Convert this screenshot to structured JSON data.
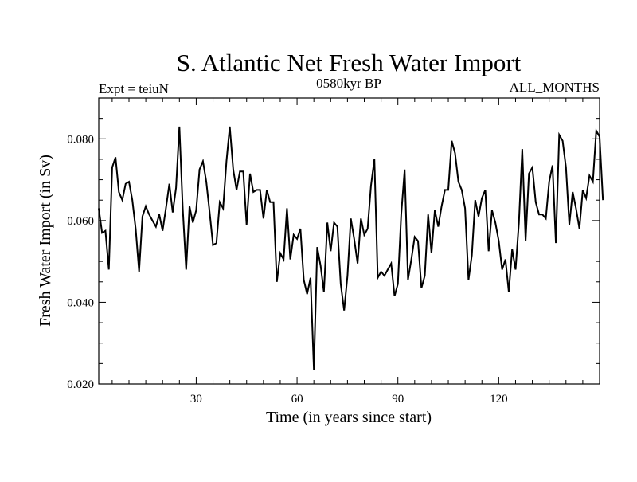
{
  "chart_data": {
    "type": "line",
    "title": "S. Atlantic Net Fresh Water Import",
    "subtitle_left": "Expt = teiuN",
    "subtitle_center": "0580kyr BP",
    "subtitle_right": "ALL_MONTHS",
    "xlabel": "Time (in years since start)",
    "ylabel": "Fresh Water Import (in Sv)",
    "xlim": [
      1,
      150
    ],
    "ylim": [
      0.02,
      0.09
    ],
    "x_major_ticks": [
      30,
      60,
      90,
      120
    ],
    "x_tick_labels": [
      "30",
      "60",
      "90",
      "120"
    ],
    "y_major_ticks": [
      0.02,
      0.04,
      0.06,
      0.08
    ],
    "y_tick_labels": [
      "0.020",
      "0.040",
      "0.060",
      "0.080"
    ],
    "grid": false,
    "series": [
      {
        "name": "Net Fresh Water Import",
        "color": "#000000",
        "x_start": 1,
        "x_step": 1,
        "values": [
          0.063,
          0.057,
          0.0575,
          0.048,
          0.073,
          0.0755,
          0.067,
          0.065,
          0.069,
          0.0695,
          0.065,
          0.058,
          0.0475,
          0.061,
          0.0635,
          0.0615,
          0.06,
          0.0585,
          0.0615,
          0.0575,
          0.063,
          0.069,
          0.062,
          0.068,
          0.083,
          0.063,
          0.048,
          0.0635,
          0.0595,
          0.0625,
          0.0725,
          0.0745,
          0.0695,
          0.062,
          0.054,
          0.0545,
          0.0645,
          0.063,
          0.0745,
          0.083,
          0.0725,
          0.0675,
          0.072,
          0.072,
          0.059,
          0.0715,
          0.067,
          0.0675,
          0.0675,
          0.0605,
          0.0675,
          0.0645,
          0.0645,
          0.045,
          0.052,
          0.0505,
          0.063,
          0.0505,
          0.0565,
          0.0555,
          0.058,
          0.0455,
          0.042,
          0.046,
          0.0235,
          0.0535,
          0.049,
          0.0425,
          0.0595,
          0.0525,
          0.0595,
          0.0585,
          0.0445,
          0.038,
          0.0465,
          0.0605,
          0.0555,
          0.0495,
          0.0605,
          0.0565,
          0.058,
          0.0685,
          0.075,
          0.046,
          0.0475,
          0.0465,
          0.048,
          0.0495,
          0.0415,
          0.0445,
          0.0615,
          0.0725,
          0.0455,
          0.0505,
          0.056,
          0.055,
          0.0435,
          0.0465,
          0.0615,
          0.052,
          0.0625,
          0.0585,
          0.0635,
          0.0675,
          0.0675,
          0.0795,
          0.0765,
          0.0695,
          0.0675,
          0.063,
          0.0455,
          0.0515,
          0.065,
          0.061,
          0.0655,
          0.0675,
          0.0525,
          0.0625,
          0.0595,
          0.055,
          0.048,
          0.0505,
          0.0425,
          0.053,
          0.048,
          0.0595,
          0.0775,
          0.055,
          0.0715,
          0.073,
          0.0645,
          0.0615,
          0.0615,
          0.0605,
          0.0695,
          0.0735,
          0.0545,
          0.081,
          0.0795,
          0.073,
          0.059,
          0.067,
          0.063,
          0.058,
          0.0675,
          0.0655,
          0.071,
          0.0695,
          0.082,
          0.0805,
          0.065
        ]
      }
    ]
  }
}
